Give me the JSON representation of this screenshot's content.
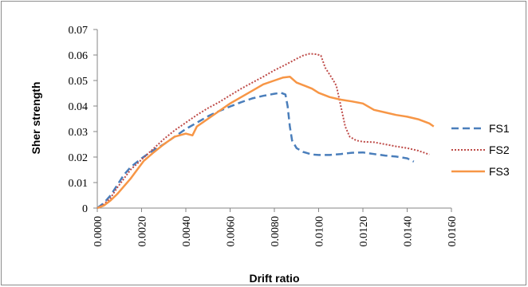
{
  "chart_data": {
    "type": "line",
    "title": "",
    "xlabel": "Drift ratio",
    "ylabel": "Sher strength",
    "xlim": [
      0,
      0.016
    ],
    "ylim": [
      0,
      0.07
    ],
    "x_ticks": [
      0,
      0.002,
      0.004,
      0.006,
      0.008,
      0.01,
      0.012,
      0.014,
      0.016
    ],
    "x_tick_labels": [
      "0.0000",
      "0.0020",
      "0.0040",
      "0.0060",
      "0.0080",
      "0.0100",
      "0.0120",
      "0.0140",
      "0.0160"
    ],
    "y_ticks": [
      0,
      0.01,
      0.02,
      0.03,
      0.04,
      0.05,
      0.06,
      0.07
    ],
    "y_tick_labels": [
      "0",
      "0.01",
      "0.02",
      "0.03",
      "0.04",
      "0.05",
      "0.06",
      "0.07"
    ],
    "grid": false,
    "legend_position": "right",
    "series": [
      {
        "name": "FS1",
        "color": "#4a7ebb",
        "dash": "dashed",
        "x": [
          0,
          0.0003,
          0.0006,
          0.0009,
          0.0012,
          0.0015,
          0.002,
          0.0025,
          0.003,
          0.0035,
          0.004,
          0.0045,
          0.005,
          0.0055,
          0.006,
          0.0065,
          0.007,
          0.0075,
          0.008,
          0.0083,
          0.0085,
          0.0086,
          0.0087,
          0.0088,
          0.009,
          0.0093,
          0.0097,
          0.01,
          0.0105,
          0.011,
          0.0115,
          0.012,
          0.0125,
          0.013,
          0.0135,
          0.014,
          0.0143
        ],
        "y": [
          0,
          0.002,
          0.005,
          0.009,
          0.013,
          0.016,
          0.0195,
          0.0225,
          0.025,
          0.028,
          0.031,
          0.0335,
          0.036,
          0.038,
          0.0398,
          0.0415,
          0.043,
          0.044,
          0.0448,
          0.0452,
          0.0445,
          0.04,
          0.032,
          0.0265,
          0.0235,
          0.022,
          0.021,
          0.0208,
          0.0208,
          0.0212,
          0.0217,
          0.0218,
          0.0212,
          0.0206,
          0.0202,
          0.0195,
          0.0182
        ]
      },
      {
        "name": "FS2",
        "color": "#be4b48",
        "dash": "dotted",
        "x": [
          0,
          0.0003,
          0.0006,
          0.0009,
          0.0012,
          0.0015,
          0.002,
          0.0025,
          0.003,
          0.0035,
          0.004,
          0.0045,
          0.005,
          0.0055,
          0.006,
          0.0065,
          0.007,
          0.0075,
          0.008,
          0.0085,
          0.009,
          0.0093,
          0.0096,
          0.0099,
          0.0101,
          0.0103,
          0.0106,
          0.0108,
          0.011,
          0.0112,
          0.0114,
          0.0117,
          0.012,
          0.0125,
          0.013,
          0.0135,
          0.014,
          0.0145,
          0.015
        ],
        "y": [
          0,
          0.0015,
          0.004,
          0.008,
          0.0115,
          0.015,
          0.019,
          0.023,
          0.027,
          0.0305,
          0.0335,
          0.0365,
          0.0392,
          0.0415,
          0.0442,
          0.0468,
          0.0492,
          0.0515,
          0.054,
          0.0562,
          0.0585,
          0.0598,
          0.0605,
          0.0603,
          0.0598,
          0.055,
          0.051,
          0.048,
          0.04,
          0.032,
          0.028,
          0.0265,
          0.026,
          0.0258,
          0.025,
          0.0242,
          0.0235,
          0.0225,
          0.021
        ]
      },
      {
        "name": "FS3",
        "color": "#f79646",
        "dash": "solid",
        "x": [
          0,
          0.0003,
          0.0006,
          0.0009,
          0.0012,
          0.0015,
          0.0018,
          0.0021,
          0.0025,
          0.003,
          0.0035,
          0.004,
          0.0043,
          0.0045,
          0.005,
          0.0055,
          0.006,
          0.0065,
          0.007,
          0.0075,
          0.008,
          0.0084,
          0.0087,
          0.009,
          0.0093,
          0.0097,
          0.01,
          0.0105,
          0.011,
          0.0115,
          0.012,
          0.0125,
          0.013,
          0.0135,
          0.014,
          0.0145,
          0.015,
          0.0152
        ],
        "y": [
          0,
          0.001,
          0.003,
          0.0055,
          0.0085,
          0.0115,
          0.015,
          0.0185,
          0.0215,
          0.025,
          0.028,
          0.0292,
          0.0285,
          0.032,
          0.035,
          0.038,
          0.041,
          0.0435,
          0.046,
          0.0485,
          0.05,
          0.0512,
          0.0515,
          0.0492,
          0.0482,
          0.0468,
          0.0452,
          0.0435,
          0.0425,
          0.0418,
          0.041,
          0.0385,
          0.0375,
          0.0365,
          0.0358,
          0.0348,
          0.0332,
          0.032
        ]
      }
    ]
  }
}
